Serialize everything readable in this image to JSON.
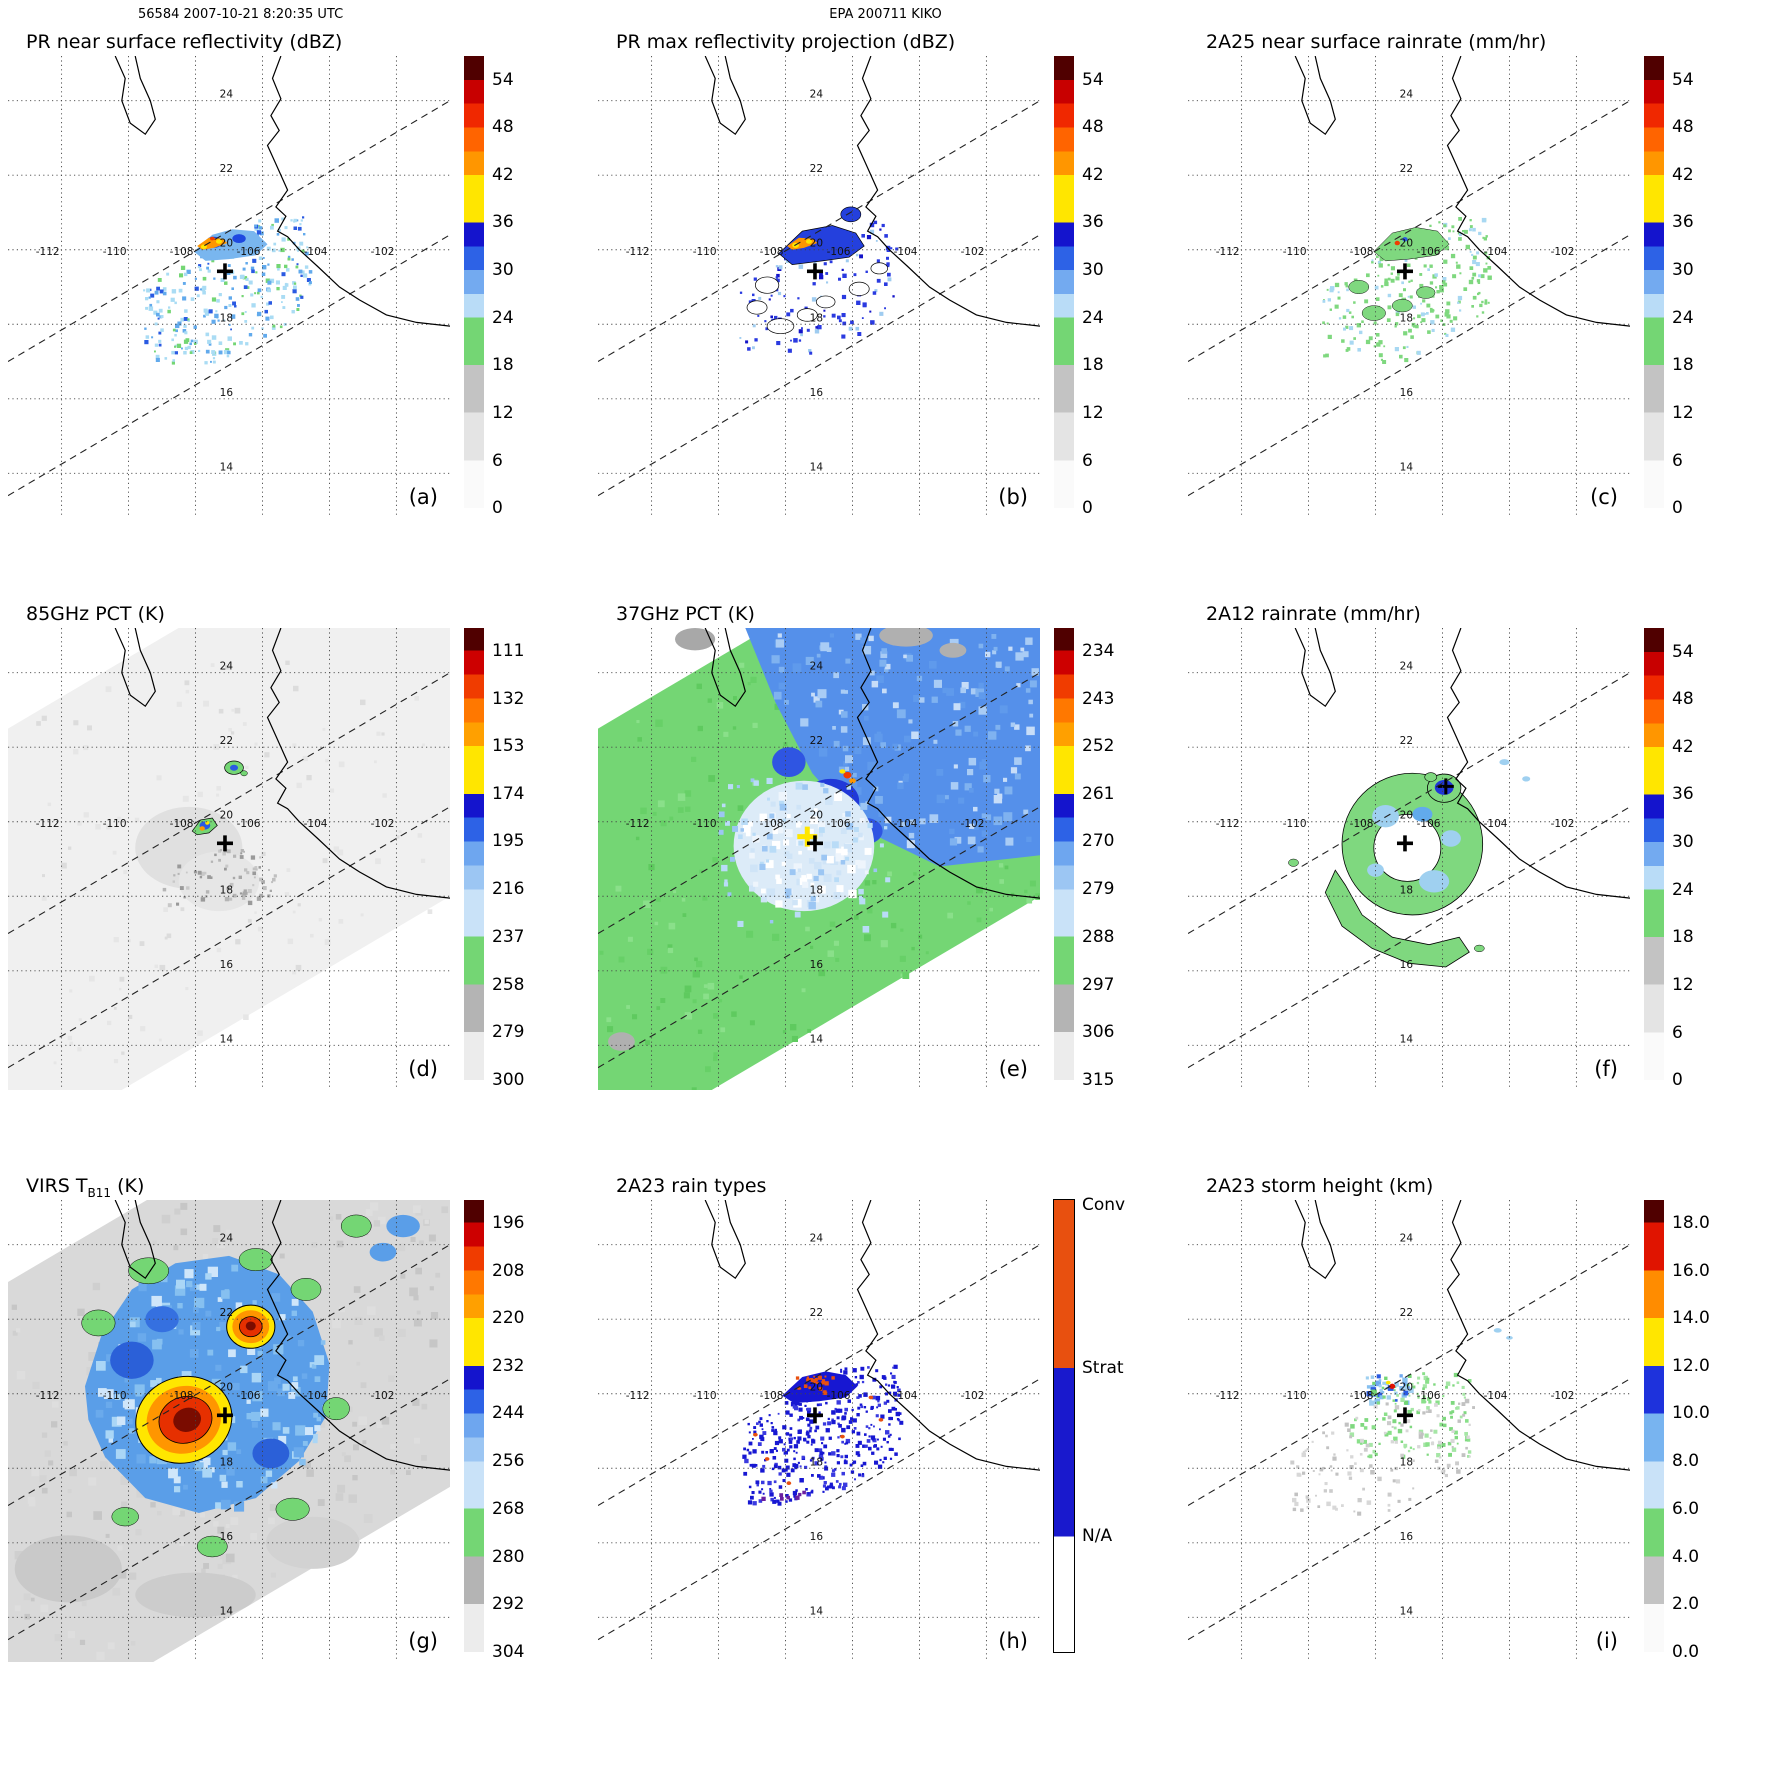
{
  "header": {
    "left": "56584 2007-10-21 8:20:35 UTC",
    "center": "EPA 200711 KIKO"
  },
  "map": {
    "lon_labels": [
      "-112",
      "-110",
      "-108",
      "-106",
      "-104",
      "-102"
    ],
    "lon_values": [
      -112,
      -110,
      -108,
      -106,
      -104,
      -102
    ],
    "lat_labels": [
      "24",
      "22",
      "20",
      "18",
      "16",
      "14"
    ],
    "lat_values": [
      24,
      22,
      20,
      18,
      16,
      14
    ]
  },
  "scales": {
    "dbz": {
      "gradient": [
        [
          "#500000",
          0,
          0.053
        ],
        [
          "#c80000",
          0.053,
          0.105
        ],
        [
          "#f02800",
          0.105,
          0.158
        ],
        [
          "#ff6400",
          0.158,
          0.211
        ],
        [
          "#ff9600",
          0.211,
          0.263
        ],
        [
          "#ffe600",
          0.263,
          0.368
        ],
        [
          "#1414cd",
          0.368,
          0.421
        ],
        [
          "#2d62e6",
          0.421,
          0.474
        ],
        [
          "#73aaf0",
          0.474,
          0.526
        ],
        [
          "#b9dcf7",
          0.526,
          0.579
        ],
        [
          "#74d674",
          0.579,
          0.684
        ],
        [
          "#c3c3c3",
          0.684,
          0.789
        ],
        [
          "#e4e4e4",
          0.789,
          0.895
        ],
        [
          "#fafafa",
          0.895,
          1
        ]
      ],
      "ticks": [
        {
          "label": "54",
          "f": 0.053
        },
        {
          "label": "48",
          "f": 0.158
        },
        {
          "label": "42",
          "f": 0.263
        },
        {
          "label": "36",
          "f": 0.368
        },
        {
          "label": "30",
          "f": 0.474
        },
        {
          "label": "24",
          "f": 0.579
        },
        {
          "label": "18",
          "f": 0.684
        },
        {
          "label": "12",
          "f": 0.789
        },
        {
          "label": "6",
          "f": 0.895
        },
        {
          "label": "0",
          "f": 1.0
        }
      ]
    },
    "pct85": {
      "gradient": [
        [
          "#500000",
          0,
          0.05
        ],
        [
          "#cd0000",
          0.05,
          0.103
        ],
        [
          "#f03c00",
          0.103,
          0.156
        ],
        [
          "#ff7800",
          0.156,
          0.209
        ],
        [
          "#ffa000",
          0.209,
          0.261
        ],
        [
          "#ffe600",
          0.261,
          0.367
        ],
        [
          "#1414cd",
          0.367,
          0.419
        ],
        [
          "#2d62e6",
          0.419,
          0.472
        ],
        [
          "#6ea6ef",
          0.472,
          0.525
        ],
        [
          "#9cc6f3",
          0.525,
          0.578
        ],
        [
          "#c9e2f8",
          0.578,
          0.683
        ],
        [
          "#74d674",
          0.683,
          0.789
        ],
        [
          "#b4b4b4",
          0.789,
          0.894
        ],
        [
          "#ececec",
          0.894,
          1
        ]
      ],
      "ticks": [
        {
          "label": "111",
          "f": 0.05
        },
        {
          "label": "132",
          "f": 0.156
        },
        {
          "label": "153",
          "f": 0.261
        },
        {
          "label": "174",
          "f": 0.367
        },
        {
          "label": "195",
          "f": 0.472
        },
        {
          "label": "216",
          "f": 0.578
        },
        {
          "label": "237",
          "f": 0.683
        },
        {
          "label": "258",
          "f": 0.789
        },
        {
          "label": "279",
          "f": 0.894
        },
        {
          "label": "300",
          "f": 1.0
        }
      ]
    },
    "pct37": {
      "gradient": [
        [
          "#500000",
          0,
          0.05
        ],
        [
          "#cd0000",
          0.05,
          0.103
        ],
        [
          "#f03c00",
          0.103,
          0.156
        ],
        [
          "#ff7800",
          0.156,
          0.209
        ],
        [
          "#ffa000",
          0.209,
          0.261
        ],
        [
          "#ffe600",
          0.261,
          0.367
        ],
        [
          "#1414cd",
          0.367,
          0.419
        ],
        [
          "#2d62e6",
          0.419,
          0.472
        ],
        [
          "#6ea6ef",
          0.472,
          0.525
        ],
        [
          "#9cc6f3",
          0.525,
          0.578
        ],
        [
          "#c9e2f8",
          0.578,
          0.683
        ],
        [
          "#74d674",
          0.683,
          0.789
        ],
        [
          "#b4b4b4",
          0.789,
          0.894
        ],
        [
          "#ececec",
          0.894,
          1
        ]
      ],
      "ticks": [
        {
          "label": "234",
          "f": 0.05
        },
        {
          "label": "243",
          "f": 0.156
        },
        {
          "label": "252",
          "f": 0.261
        },
        {
          "label": "261",
          "f": 0.367
        },
        {
          "label": "270",
          "f": 0.472
        },
        {
          "label": "279",
          "f": 0.578
        },
        {
          "label": "288",
          "f": 0.683
        },
        {
          "label": "297",
          "f": 0.789
        },
        {
          "label": "306",
          "f": 0.894
        },
        {
          "label": "315",
          "f": 1.0
        }
      ]
    },
    "virs": {
      "gradient": [
        [
          "#500000",
          0,
          0.05
        ],
        [
          "#cd0000",
          0.05,
          0.103
        ],
        [
          "#f03c00",
          0.103,
          0.156
        ],
        [
          "#ff7800",
          0.156,
          0.209
        ],
        [
          "#ffa000",
          0.209,
          0.261
        ],
        [
          "#ffe600",
          0.261,
          0.367
        ],
        [
          "#1414cd",
          0.367,
          0.419
        ],
        [
          "#2d62e6",
          0.419,
          0.472
        ],
        [
          "#6ea6ef",
          0.472,
          0.525
        ],
        [
          "#9cc6f3",
          0.525,
          0.578
        ],
        [
          "#c9e2f8",
          0.578,
          0.683
        ],
        [
          "#74d674",
          0.683,
          0.789
        ],
        [
          "#b4b4b4",
          0.789,
          0.894
        ],
        [
          "#ececec",
          0.894,
          1
        ]
      ],
      "ticks": [
        {
          "label": "196",
          "f": 0.05
        },
        {
          "label": "208",
          "f": 0.156
        },
        {
          "label": "220",
          "f": 0.261
        },
        {
          "label": "232",
          "f": 0.367
        },
        {
          "label": "244",
          "f": 0.472
        },
        {
          "label": "256",
          "f": 0.578
        },
        {
          "label": "268",
          "f": 0.683
        },
        {
          "label": "280",
          "f": 0.789
        },
        {
          "label": "292",
          "f": 0.894
        },
        {
          "label": "304",
          "f": 1.0
        }
      ]
    },
    "raintype": {
      "border": true,
      "gradient": [
        [
          "#e8500f",
          0,
          0.372
        ],
        [
          "#1919cd",
          0.372,
          0.744
        ],
        [
          "#ffffff",
          0.744,
          1
        ]
      ],
      "ticks": [
        {
          "label": "Conv",
          "f": 0.012
        },
        {
          "label": "Strat",
          "f": 0.372
        },
        {
          "label": "N/A",
          "f": 0.744
        }
      ]
    },
    "height": {
      "gradient": [
        [
          "#500000",
          0,
          0.05
        ],
        [
          "#e01400",
          0.05,
          0.156
        ],
        [
          "#ff8c00",
          0.156,
          0.261
        ],
        [
          "#ffe600",
          0.261,
          0.367
        ],
        [
          "#1e32dc",
          0.367,
          0.472
        ],
        [
          "#78b4f0",
          0.472,
          0.578
        ],
        [
          "#c9e2f8",
          0.578,
          0.683
        ],
        [
          "#74d674",
          0.683,
          0.789
        ],
        [
          "#c3c3c3",
          0.789,
          0.894
        ],
        [
          "#fafafa",
          0.894,
          1
        ]
      ],
      "ticks": [
        {
          "label": "18.0",
          "f": 0.05
        },
        {
          "label": "16.0",
          "f": 0.156
        },
        {
          "label": "14.0",
          "f": 0.261
        },
        {
          "label": "12.0",
          "f": 0.367
        },
        {
          "label": "10.0",
          "f": 0.472
        },
        {
          "label": "8.0",
          "f": 0.578
        },
        {
          "label": "6.0",
          "f": 0.683
        },
        {
          "label": "4.0",
          "f": 0.789
        },
        {
          "label": "2.0",
          "f": 0.894
        },
        {
          "label": "0.0",
          "f": 1.0
        }
      ]
    }
  },
  "panels": [
    {
      "id": "a",
      "title": "PR near surface reflectivity (dBZ)",
      "letter": "(a)",
      "scale": "dbz"
    },
    {
      "id": "b",
      "title": "PR max reflectivity projection (dBZ)",
      "letter": "(b)",
      "scale": "dbz"
    },
    {
      "id": "c",
      "title": "2A25 near surface rainrate (mm/hr)",
      "letter": "(c)",
      "scale": "dbz"
    },
    {
      "id": "d",
      "title": "85GHz PCT (K)",
      "letter": "(d)",
      "scale": "pct85"
    },
    {
      "id": "e",
      "title": "37GHz PCT (K)",
      "letter": "(e)",
      "scale": "pct37"
    },
    {
      "id": "f",
      "title": "2A12 rainrate (mm/hr)",
      "letter": "(f)",
      "scale": "dbz"
    },
    {
      "id": "g",
      "title": "VIRS T",
      "title_sub": "B11",
      "title_suffix": " (K)",
      "letter": "(g)",
      "scale": "virs"
    },
    {
      "id": "h",
      "title": "2A23 rain types",
      "letter": "(h)",
      "scale": "raintype"
    },
    {
      "id": "i",
      "title": "2A23 storm height (km)",
      "letter": "(i)",
      "scale": "height"
    }
  ],
  "chart_data": {
    "figure": "EPA 200711 KIKO - orbit 56584 2007-10-21 8:20:35 UTC - 3x3 multi-sensor map panels",
    "type": "heatmap",
    "map_extent": {
      "lon": [
        -113.6,
        -100.4
      ],
      "lat": [
        12.8,
        25.2
      ]
    },
    "lon_gridlines": [
      -112,
      -110,
      -108,
      -106,
      -104,
      -102
    ],
    "lat_gridlines": [
      24,
      22,
      20,
      18,
      16,
      14
    ],
    "swath_boundaries": "two parallel dashed lines running SW-NE across every panel (PR swath edges)",
    "storm_center_marker": {
      "symbol": "+",
      "lon": -107.1,
      "lat": 19.5
    },
    "panels": [
      {
        "letter": "(a)",
        "type": "heatmap",
        "title": "PR near surface reflectivity (dBZ)",
        "units": "dBZ",
        "colorbar_ticks": [
          54,
          48,
          42,
          36,
          30,
          24,
          18,
          12,
          6,
          0
        ],
        "notes": "scattered 18-30 dBZ echoes near 19-20.5N 108-105W with a 36-48 dBZ convective streak near 20.2N 107.5W"
      },
      {
        "letter": "(b)",
        "type": "heatmap",
        "title": "PR max reflectivity projection (dBZ)",
        "units": "dBZ",
        "colorbar_ticks": [
          54,
          48,
          42,
          36,
          30,
          24,
          18,
          12,
          6,
          0
        ],
        "notes": "same footprint as (a) with outlined 30-36 dBZ regions and embedded 36-48 dBZ cells"
      },
      {
        "letter": "(c)",
        "type": "heatmap",
        "title": "2A25 near surface rainrate (mm/hr)",
        "units": "mm/hr",
        "colorbar_ticks": [
          54,
          48,
          42,
          36,
          30,
          24,
          18,
          12,
          6,
          0
        ],
        "notes": "mostly light (0-6 mm/hr, green) rain over the same echo region; isolated heavier pixels near 20.2N 107.3W"
      },
      {
        "letter": "(d)",
        "type": "heatmap",
        "title": "85GHz PCT (K)",
        "units": "K",
        "colorbar_ticks": [
          111,
          132,
          153,
          174,
          195,
          216,
          237,
          258,
          279,
          300
        ],
        "notes": "mostly warm (>279 K) background; small depressed PCT feature (green/blue/orange, <237 K) near 19.9N 107.7W and 21.4N 106.9W"
      },
      {
        "letter": "(e)",
        "type": "heatmap",
        "title": "37GHz PCT (K)",
        "units": "K",
        "colorbar_ticks": [
          234,
          243,
          252,
          261,
          270,
          279,
          288,
          297,
          306,
          315
        ],
        "notes": "green (~288 K) swath with blue (270-279 K) ocean region to the NE, pale low-PCT core near 19.4N 107.4W, yellow minimum cross near 19.6N 107.3W"
      },
      {
        "letter": "(f)",
        "type": "heatmap",
        "title": "2A12 rainrate (mm/hr)",
        "units": "mm/hr",
        "colorbar_ticks": [
          54,
          48,
          42,
          36,
          30,
          24,
          18,
          12,
          6,
          0
        ],
        "notes": "broad 0-6 mm/hr (green) comma/ring pattern around 19.4N 106.9W with 6-24 mm/hr patches and a heavier cell near 20.9N 106.0W"
      },
      {
        "letter": "(g)",
        "type": "heatmap",
        "title": "VIRS TB11 (K)",
        "units": "K",
        "colorbar_ticks": [
          196,
          208,
          220,
          232,
          244,
          256,
          268,
          280,
          292,
          304
        ],
        "notes": "large cold cloud shield (244-256 K, blue) with two very cold cores <220 K (orange/red/dark-red) near 19.3N 108.4W and 21.8N 106.4W"
      },
      {
        "letter": "(h)",
        "type": "categorical-map",
        "title": "2A23 rain types",
        "categories": [
          "Conv",
          "Strat",
          "N/A"
        ],
        "category_colors": {
          "Conv": "#e8500f",
          "Strat": "#1919cd",
          "N/A": "#ffffff"
        },
        "notes": "mostly stratiform (blue) pixels with convective (orange) pixels along the northern edge near 20.3N 107.5W and scattered to the south"
      },
      {
        "letter": "(i)",
        "type": "heatmap",
        "title": "2A23 storm height (km)",
        "units": "km",
        "colorbar_ticks": [
          18.0,
          16.0,
          14.0,
          12.0,
          10.0,
          8.0,
          6.0,
          4.0,
          2.0,
          0.0
        ],
        "notes": "storm heights mostly 2-8 km (gray/green) with 8-12 km (blue) cluster near 20.2N 107.6W"
      }
    ]
  }
}
